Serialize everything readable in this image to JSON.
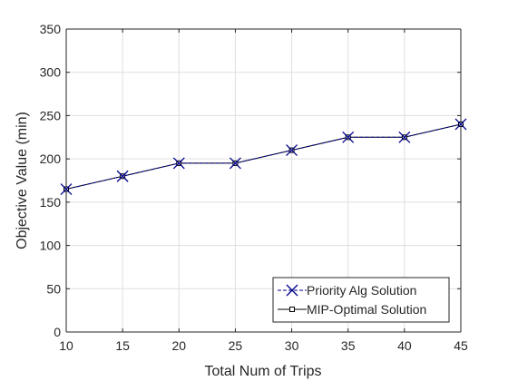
{
  "chart_data": {
    "type": "line",
    "xlabel": "Total Num of Trips",
    "ylabel": "Objective Value (min)",
    "xlim": [
      10,
      45
    ],
    "ylim": [
      0,
      350
    ],
    "x_ticks": [
      10,
      15,
      20,
      25,
      30,
      35,
      40,
      45
    ],
    "y_ticks": [
      0,
      50,
      100,
      150,
      200,
      250,
      300,
      350
    ],
    "grid": true,
    "legend_position": "bottom-right",
    "x": [
      10,
      15,
      20,
      25,
      30,
      35,
      40,
      45
    ],
    "series": [
      {
        "name": "Priority Alg Solution",
        "values": [
          165,
          180,
          195,
          195,
          210,
          225,
          225,
          240
        ],
        "color": "#00008b",
        "line_style": "dashed",
        "marker": "x"
      },
      {
        "name": "MIP-Optimal Solution",
        "values": [
          165,
          180,
          195,
          195,
          210,
          225,
          225,
          240
        ],
        "color": "#000000",
        "line_style": "solid",
        "marker": "square"
      }
    ]
  }
}
